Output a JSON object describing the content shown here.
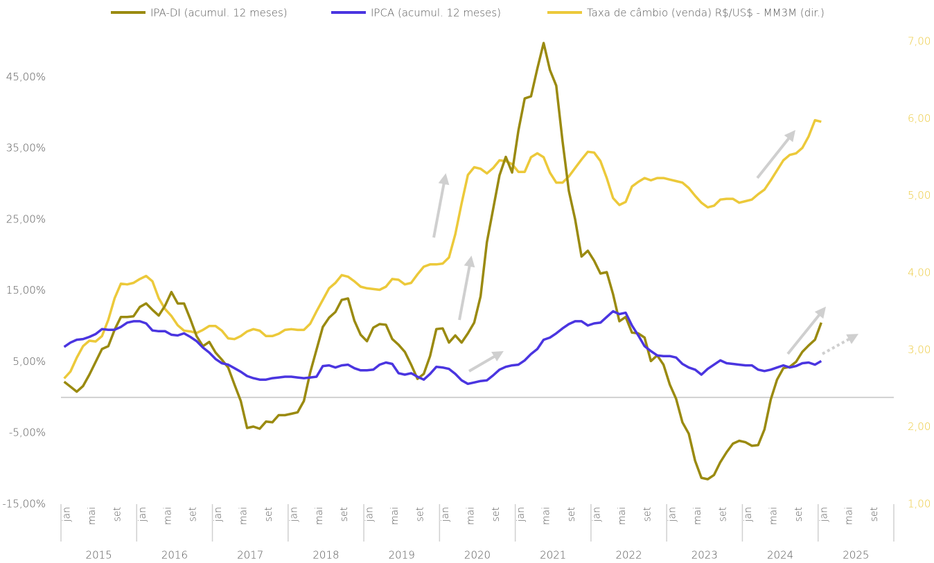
{
  "chart_data": {
    "type": "line",
    "categories": [
      "jan",
      null,
      null,
      null,
      "mai",
      null,
      null,
      null,
      "set",
      null,
      null,
      null,
      "jan",
      null,
      null,
      null,
      "mai",
      null,
      null,
      null,
      "set",
      null,
      null,
      null,
      "jan",
      null,
      null,
      null,
      "mai",
      null,
      null,
      null,
      "set",
      null,
      null,
      null,
      "jan",
      null,
      null,
      null,
      "mai",
      null,
      null,
      null,
      "set",
      null,
      null,
      null,
      "jan",
      null,
      null,
      null,
      "mai",
      null,
      null,
      null,
      "set",
      null,
      null,
      null,
      "jan",
      null,
      null,
      null,
      "mai",
      null,
      null,
      null,
      "set",
      null,
      null,
      null,
      "jan",
      null,
      null,
      null,
      "mai",
      null,
      null,
      null,
      "set",
      null,
      null,
      null,
      "jan",
      null,
      null,
      null,
      "mai",
      null,
      null,
      null,
      "set",
      null,
      null,
      null,
      "jan",
      null,
      null,
      null,
      "mai",
      null,
      null,
      null,
      "set",
      null,
      null,
      null,
      "jan",
      null,
      null,
      null,
      "mai",
      null,
      null,
      null,
      "set",
      null,
      null,
      null,
      "jan",
      null,
      null,
      null,
      "mai",
      null,
      null,
      null,
      "set",
      null,
      null,
      null
    ],
    "year_groups": [
      "2015",
      "2016",
      "2017",
      "2018",
      "2019",
      "2020",
      "2021",
      "2022",
      "2023",
      "2024",
      "2025"
    ],
    "series": [
      {
        "name": "IPA-DI (acumul. 12 meses)",
        "color": "#9a8a10",
        "values": [
          2.2,
          1.5,
          0.8,
          1.6,
          3.2,
          5.0,
          6.8,
          7.2,
          9.5,
          11.3,
          11.3,
          11.4,
          12.7,
          13.2,
          12.3,
          11.5,
          12.9,
          14.8,
          13.2,
          13.2,
          11.0,
          8.6,
          7.2,
          7.8,
          6.3,
          5.3,
          4.2,
          1.8,
          -0.5,
          -4.3,
          -4.1,
          -4.4,
          -3.4,
          -3.5,
          -2.5,
          -2.5,
          -2.3,
          -2.1,
          -0.5,
          3.5,
          6.7,
          9.9,
          11.2,
          12.0,
          13.7,
          13.9,
          10.8,
          8.8,
          7.9,
          9.8,
          10.3,
          10.2,
          8.2,
          7.4,
          6.4,
          4.6,
          2.6,
          3.3,
          5.8,
          9.6,
          9.7,
          7.7,
          8.7,
          7.7,
          9.0,
          10.5,
          14.2,
          21.8,
          26.5,
          31.2,
          33.8,
          31.6,
          37.5,
          42.0,
          42.3,
          46.2,
          49.8,
          46.0,
          43.8,
          36.0,
          29.0,
          25.0,
          19.8,
          20.6,
          19.2,
          17.4,
          17.6,
          14.5,
          10.7,
          11.3,
          9.1,
          9.0,
          8.4,
          5.1,
          5.9,
          4.6,
          1.8,
          -0.2,
          -3.5,
          -5.1,
          -8.9,
          -11.3,
          -11.5,
          -10.9,
          -9.1,
          -7.7,
          -6.5,
          -6.1,
          -6.3,
          -6.8,
          -6.7,
          -4.5,
          -0.3,
          2.5,
          4.1,
          4.3,
          5.0,
          6.4,
          7.3,
          8.1,
          10.5,
          null,
          null,
          null,
          null,
          null,
          null,
          null,
          null,
          null,
          null,
          null
        ]
      },
      {
        "name": "IPCA (acumul. 12 meses)",
        "color": "#4a35e0",
        "values": [
          7.1,
          7.7,
          8.1,
          8.2,
          8.5,
          8.9,
          9.6,
          9.5,
          9.5,
          9.9,
          10.5,
          10.7,
          10.7,
          10.4,
          9.4,
          9.3,
          9.3,
          8.8,
          8.7,
          9.0,
          8.5,
          7.9,
          7.0,
          6.3,
          5.4,
          4.8,
          4.6,
          4.1,
          3.6,
          3.0,
          2.7,
          2.5,
          2.5,
          2.7,
          2.8,
          2.9,
          2.9,
          2.8,
          2.7,
          2.8,
          2.9,
          4.4,
          4.5,
          4.2,
          4.5,
          4.6,
          4.1,
          3.8,
          3.8,
          3.9,
          4.6,
          4.9,
          4.7,
          3.4,
          3.2,
          3.4,
          2.9,
          2.5,
          3.3,
          4.3,
          4.2,
          4.0,
          3.3,
          2.4,
          1.9,
          2.1,
          2.3,
          2.4,
          3.1,
          3.9,
          4.3,
          4.5,
          4.6,
          5.2,
          6.1,
          6.8,
          8.1,
          8.4,
          9.0,
          9.7,
          10.3,
          10.7,
          10.7,
          10.1,
          10.4,
          10.5,
          11.3,
          12.1,
          11.7,
          11.9,
          10.1,
          8.7,
          7.2,
          6.5,
          5.9,
          5.8,
          5.8,
          5.6,
          4.7,
          4.2,
          3.9,
          3.2,
          4.0,
          4.6,
          5.2,
          4.8,
          4.7,
          4.6,
          4.5,
          4.5,
          3.9,
          3.7,
          3.9,
          4.2,
          4.5,
          4.2,
          4.4,
          4.8,
          4.9,
          4.6,
          5.1,
          null,
          null,
          null,
          null,
          null,
          null,
          null,
          null,
          null,
          null,
          null
        ]
      },
      {
        "name": "Taxa de câmbio (venda) R$/US$ - MM3M (dir.)",
        "color": "#ecc93a",
        "axis": "y2",
        "values": [
          2.63,
          2.72,
          2.9,
          3.05,
          3.12,
          3.11,
          3.18,
          3.39,
          3.67,
          3.86,
          3.85,
          3.87,
          3.92,
          3.96,
          3.89,
          3.67,
          3.53,
          3.44,
          3.32,
          3.25,
          3.24,
          3.22,
          3.26,
          3.31,
          3.31,
          3.25,
          3.15,
          3.14,
          3.18,
          3.24,
          3.27,
          3.25,
          3.18,
          3.18,
          3.21,
          3.26,
          3.27,
          3.26,
          3.26,
          3.34,
          3.5,
          3.65,
          3.8,
          3.87,
          3.97,
          3.95,
          3.89,
          3.82,
          3.8,
          3.79,
          3.78,
          3.82,
          3.92,
          3.91,
          3.85,
          3.87,
          3.98,
          4.08,
          4.11,
          4.11,
          4.12,
          4.2,
          4.5,
          4.9,
          5.27,
          5.37,
          5.35,
          5.29,
          5.36,
          5.46,
          5.45,
          5.41,
          5.31,
          5.31,
          5.5,
          5.55,
          5.5,
          5.3,
          5.17,
          5.17,
          5.25,
          5.36,
          5.47,
          5.57,
          5.56,
          5.45,
          5.23,
          4.97,
          4.88,
          4.92,
          5.12,
          5.18,
          5.23,
          5.2,
          5.23,
          5.23,
          5.21,
          5.19,
          5.17,
          5.1,
          5.0,
          4.91,
          4.85,
          4.87,
          4.95,
          4.96,
          4.96,
          4.91,
          4.93,
          4.95,
          5.02,
          5.08,
          5.2,
          5.33,
          5.46,
          5.53,
          5.55,
          5.62,
          5.77,
          5.98,
          5.96,
          null,
          null,
          null,
          null,
          null,
          null,
          null,
          null,
          null,
          null,
          null
        ]
      }
    ],
    "ylim": [
      -15,
      50
    ],
    "yticks": [
      {
        "value": -15,
        "label": "-15,00%"
      },
      {
        "value": -5,
        "label": "-5,00%"
      },
      {
        "value": 5,
        "label": "5,00%"
      },
      {
        "value": 15,
        "label": "15,00%"
      },
      {
        "value": 25,
        "label": "25,00%"
      },
      {
        "value": 35,
        "label": "35,00%"
      },
      {
        "value": 45,
        "label": "45,00%"
      }
    ],
    "y2lim": [
      1,
      7
    ],
    "y2ticks": [
      {
        "value": 1,
        "label": "1,00"
      },
      {
        "value": 2,
        "label": "2,00"
      },
      {
        "value": 3,
        "label": "3,00"
      },
      {
        "value": 4,
        "label": "4,00"
      },
      {
        "value": 5,
        "label": "5,00"
      },
      {
        "value": 6,
        "label": "6,00"
      },
      {
        "value": 7,
        "label": "7,00"
      }
    ],
    "y2_color": "#ecc93a",
    "grid": false,
    "legend": "top"
  }
}
